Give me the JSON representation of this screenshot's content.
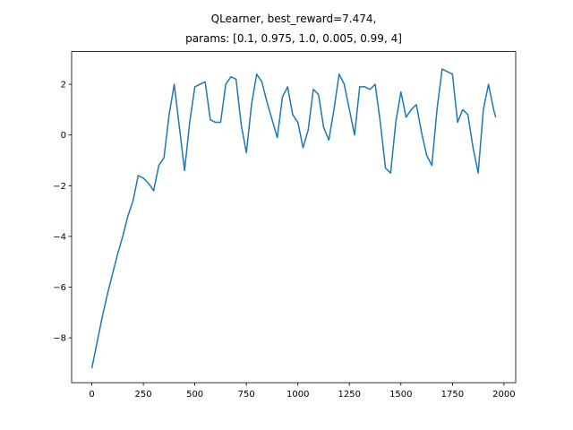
{
  "chart_data": {
    "type": "line",
    "title": [
      "QLearner, best_reward=7.474,",
      "params: [0.1, 0.975, 1.0, 0.005, 0.99, 4]"
    ],
    "x": [
      0,
      25,
      50,
      75,
      100,
      125,
      150,
      175,
      200,
      225,
      250,
      275,
      300,
      325,
      350,
      375,
      400,
      425,
      450,
      475,
      500,
      525,
      550,
      575,
      600,
      625,
      650,
      675,
      700,
      725,
      750,
      775,
      800,
      825,
      850,
      875,
      900,
      925,
      950,
      975,
      1000,
      1025,
      1050,
      1075,
      1100,
      1125,
      1150,
      1175,
      1200,
      1225,
      1250,
      1275,
      1300,
      1325,
      1350,
      1375,
      1400,
      1425,
      1450,
      1475,
      1500,
      1525,
      1550,
      1575,
      1600,
      1625,
      1650,
      1675,
      1700,
      1725,
      1750,
      1775,
      1800,
      1825,
      1850,
      1875,
      1900,
      1925,
      1950,
      1960
    ],
    "series": [
      {
        "color": "#1f77b4",
        "values": [
          -9.2,
          -8.2,
          -7.2,
          -6.3,
          -5.5,
          -4.7,
          -4.0,
          -3.2,
          -2.6,
          -1.6,
          -1.7,
          -1.9,
          -2.2,
          -1.2,
          -0.9,
          0.8,
          2.0,
          0.3,
          -1.4,
          0.5,
          1.9,
          2.0,
          2.1,
          0.6,
          0.5,
          0.5,
          2.0,
          2.3,
          2.2,
          0.4,
          -0.7,
          1.2,
          2.4,
          2.1,
          1.3,
          0.6,
          -0.1,
          1.5,
          1.9,
          0.8,
          0.5,
          -0.5,
          0.2,
          1.8,
          1.6,
          0.3,
          -0.2,
          1.0,
          2.4,
          2.0,
          1.0,
          0.0,
          1.9,
          1.9,
          1.8,
          2.0,
          0.5,
          -1.3,
          -1.5,
          0.5,
          1.7,
          0.7,
          1.0,
          1.2,
          0.1,
          -0.8,
          -1.2,
          1.0,
          2.6,
          2.5,
          2.4,
          0.5,
          1.0,
          0.8,
          -0.5,
          -1.5,
          1.0,
          2.0,
          1.0,
          0.7
        ]
      }
    ],
    "xlim": [
      -98,
      2057
    ],
    "ylim": [
      -9.77,
      3.29
    ],
    "xticks": [
      0,
      250,
      500,
      750,
      1000,
      1250,
      1500,
      1750,
      2000
    ],
    "yticks": [
      {
        "value": -8,
        "label": "−8"
      },
      {
        "value": -6,
        "label": "−6"
      },
      {
        "value": -4,
        "label": "−4"
      },
      {
        "value": -2,
        "label": "−2"
      },
      0,
      2
    ]
  }
}
